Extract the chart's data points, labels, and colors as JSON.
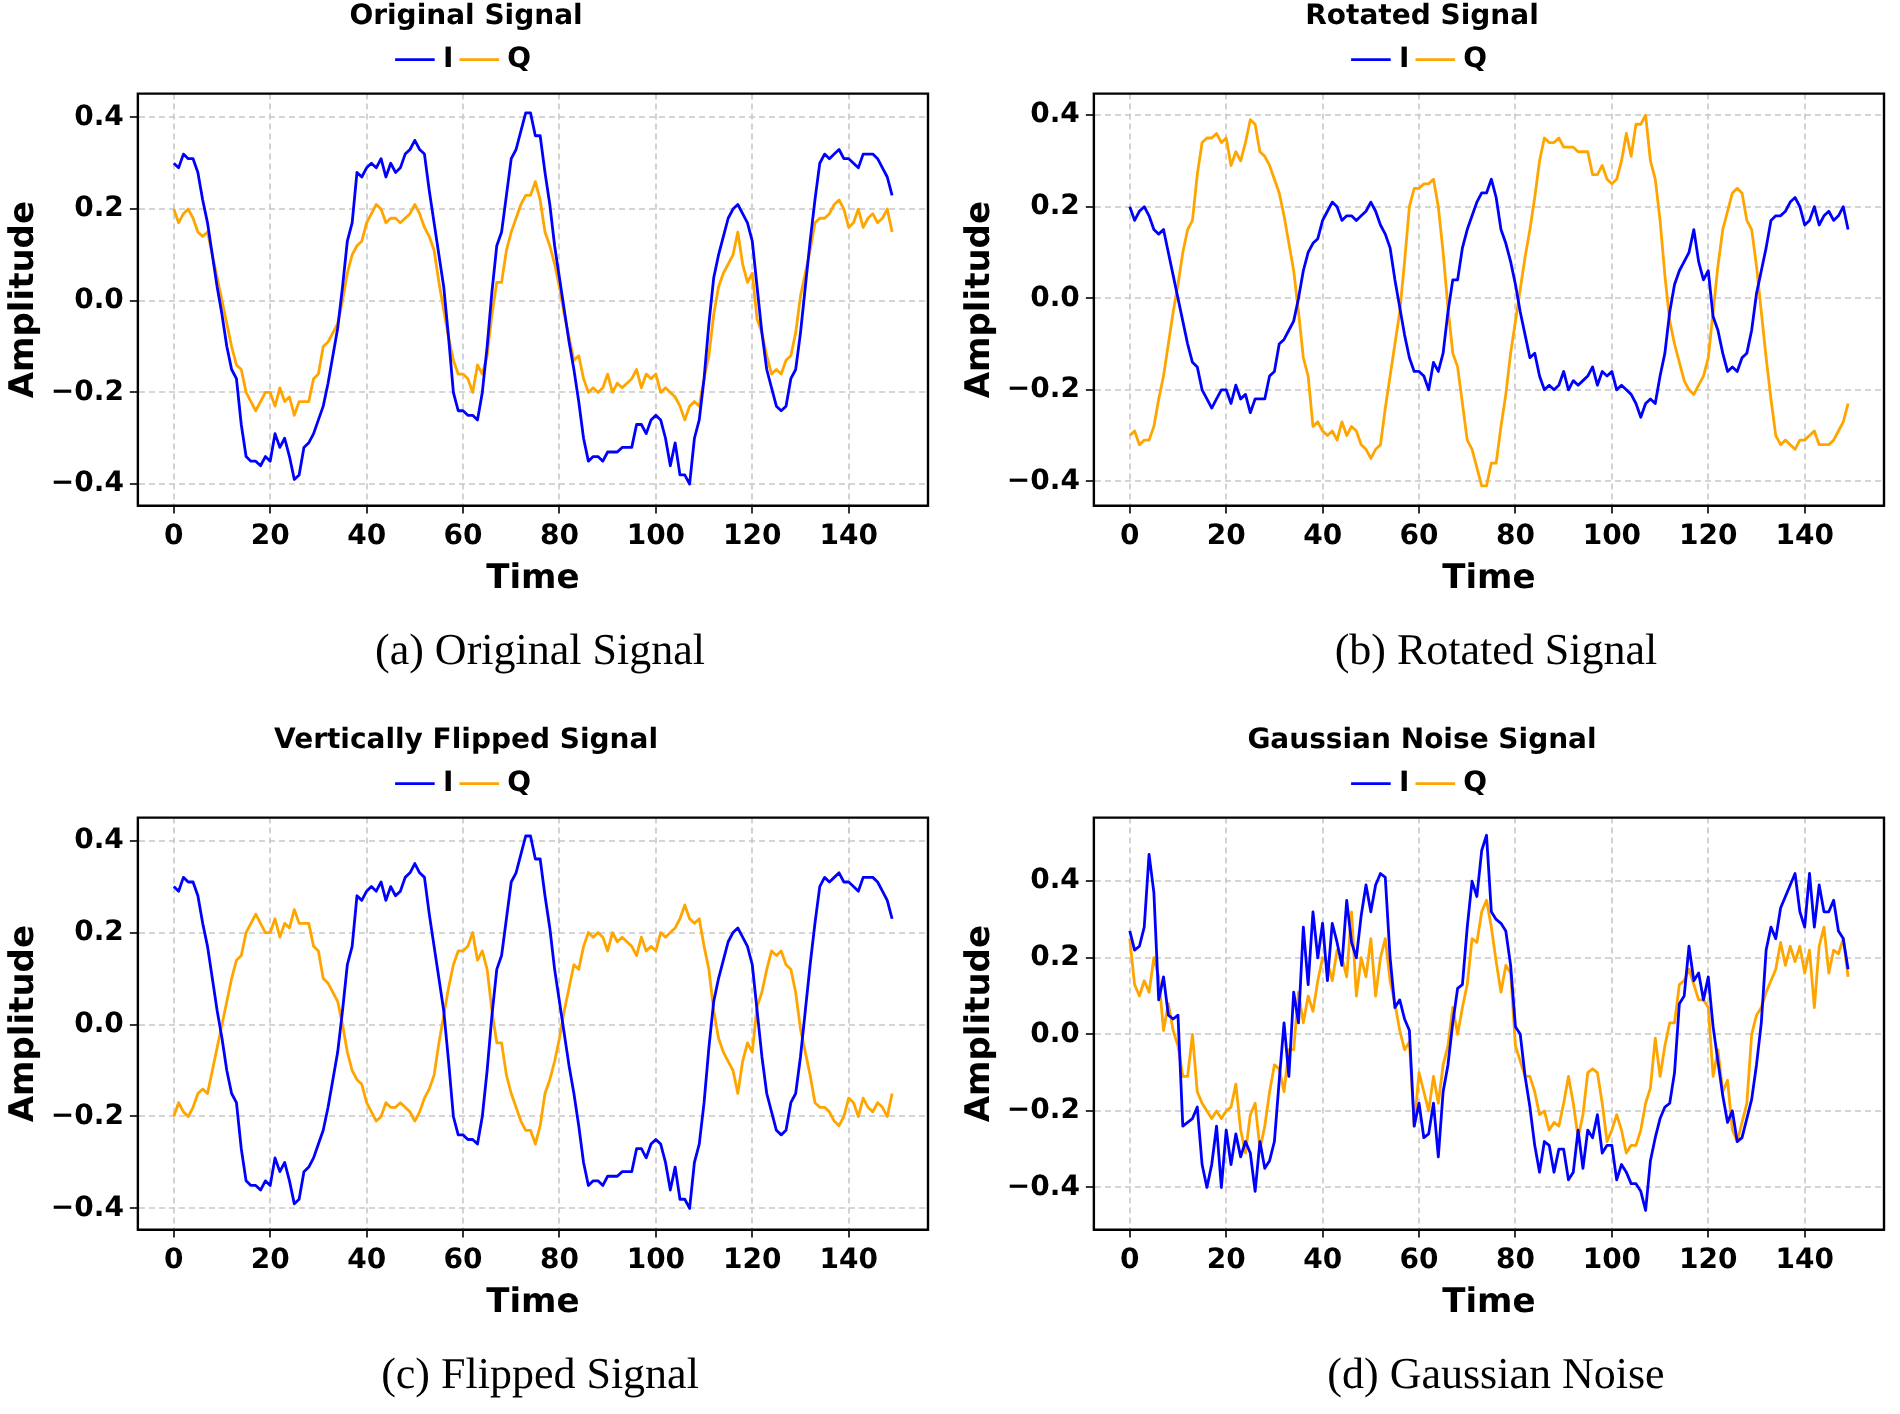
{
  "chart_data": [
    {
      "type": "line",
      "title": "Original Signal",
      "xlabel": "Time",
      "ylabel": "Amplitude",
      "legend": "top",
      "grid": true,
      "marker": "none",
      "line_style": "solid",
      "annotations": [
        "(a) Original Signal"
      ],
      "xlim": [
        -7.45,
        156.45
      ],
      "xticks": [
        0,
        20,
        40,
        60,
        80,
        100,
        120,
        140
      ],
      "ylim": [
        -0.447,
        0.452
      ],
      "yticks": [
        {
          "value": -0.4,
          "label": "−0.4"
        },
        {
          "value": -0.2,
          "label": "−0.2"
        },
        {
          "value": 0,
          "label": "0.0"
        },
        {
          "value": 0.2,
          "label": "0.2"
        },
        {
          "value": 0.4,
          "label": "0.4"
        }
      ],
      "x": [
        0,
        1,
        2,
        3,
        4,
        5,
        6,
        7,
        8,
        9,
        10,
        11,
        12,
        13,
        14,
        15,
        16,
        17,
        18,
        19,
        20,
        21,
        22,
        23,
        24,
        25,
        26,
        27,
        28,
        29,
        30,
        31,
        32,
        33,
        34,
        35,
        36,
        37,
        38,
        39,
        40,
        41,
        42,
        43,
        44,
        45,
        46,
        47,
        48,
        49,
        50,
        51,
        52,
        53,
        54,
        55,
        56,
        57,
        58,
        59,
        60,
        61,
        62,
        63,
        64,
        65,
        66,
        67,
        68,
        69,
        70,
        71,
        72,
        73,
        74,
        75,
        76,
        77,
        78,
        79,
        80,
        81,
        82,
        83,
        84,
        85,
        86,
        87,
        88,
        89,
        90,
        91,
        92,
        93,
        94,
        95,
        96,
        97,
        98,
        99,
        100,
        101,
        102,
        103,
        104,
        105,
        106,
        107,
        108,
        109,
        110,
        111,
        112,
        113,
        114,
        115,
        116,
        117,
        118,
        119,
        120,
        121,
        122,
        123,
        124,
        125,
        126,
        127,
        128,
        129,
        130,
        131,
        132,
        133,
        134,
        135,
        136,
        137,
        138,
        139,
        140,
        141,
        142,
        143,
        144,
        145,
        146,
        147,
        148,
        149
      ],
      "series": [
        {
          "name": "I",
          "color": "#0000ff",
          "values": [
            0.3,
            0.29,
            0.32,
            0.31,
            0.31,
            0.28,
            0.22,
            0.17,
            0.1,
            0.03,
            -0.03,
            -0.1,
            -0.15,
            -0.17,
            -0.27,
            -0.34,
            -0.35,
            -0.35,
            -0.36,
            -0.34,
            -0.35,
            -0.29,
            -0.32,
            -0.3,
            -0.34,
            -0.39,
            -0.38,
            -0.32,
            -0.31,
            -0.29,
            -0.26,
            -0.23,
            -0.18,
            -0.12,
            -0.06,
            0.03,
            0.13,
            0.17,
            0.28,
            0.27,
            0.29,
            0.3,
            0.29,
            0.31,
            0.27,
            0.3,
            0.28,
            0.29,
            0.32,
            0.33,
            0.35,
            0.33,
            0.32,
            0.24,
            0.17,
            0.1,
            0.03,
            -0.08,
            -0.2,
            -0.24,
            -0.24,
            -0.25,
            -0.25,
            -0.26,
            -0.2,
            -0.1,
            0.02,
            0.12,
            0.15,
            0.23,
            0.31,
            0.33,
            0.37,
            0.41,
            0.41,
            0.36,
            0.36,
            0.28,
            0.21,
            0.12,
            0.05,
            -0.02,
            -0.09,
            -0.15,
            -0.22,
            -0.3,
            -0.35,
            -0.34,
            -0.34,
            -0.35,
            -0.33,
            -0.33,
            -0.33,
            -0.32,
            -0.32,
            -0.32,
            -0.27,
            -0.27,
            -0.29,
            -0.26,
            -0.25,
            -0.26,
            -0.3,
            -0.36,
            -0.31,
            -0.38,
            -0.38,
            -0.4,
            -0.3,
            -0.26,
            -0.17,
            -0.05,
            0.05,
            0.1,
            0.14,
            0.18,
            0.2,
            0.21,
            0.19,
            0.17,
            0.13,
            0.03,
            -0.07,
            -0.15,
            -0.19,
            -0.23,
            -0.24,
            -0.23,
            -0.17,
            -0.15,
            -0.07,
            0.03,
            0.13,
            0.22,
            0.3,
            0.32,
            0.31,
            0.32,
            0.33,
            0.31,
            0.31,
            0.3,
            0.29,
            0.32,
            0.32,
            0.32,
            0.31,
            0.29,
            0.27,
            0.23
          ]
        },
        {
          "name": "Q",
          "color": "#ffa500",
          "values": [
            0.2,
            0.17,
            0.19,
            0.2,
            0.18,
            0.15,
            0.14,
            0.15,
            0.1,
            0.05,
            0.0,
            -0.05,
            -0.1,
            -0.14,
            -0.15,
            -0.2,
            -0.22,
            -0.24,
            -0.22,
            -0.2,
            -0.2,
            -0.23,
            -0.19,
            -0.22,
            -0.21,
            -0.25,
            -0.22,
            -0.22,
            -0.22,
            -0.17,
            -0.16,
            -0.1,
            -0.09,
            -0.07,
            -0.05,
            0.0,
            0.06,
            0.1,
            0.12,
            0.13,
            0.17,
            0.19,
            0.21,
            0.2,
            0.17,
            0.18,
            0.18,
            0.17,
            0.18,
            0.19,
            0.21,
            0.19,
            0.16,
            0.14,
            0.11,
            0.04,
            -0.02,
            -0.08,
            -0.13,
            -0.16,
            -0.16,
            -0.17,
            -0.2,
            -0.14,
            -0.16,
            -0.12,
            -0.03,
            0.04,
            0.04,
            0.11,
            0.15,
            0.18,
            0.21,
            0.23,
            0.23,
            0.26,
            0.22,
            0.15,
            0.12,
            0.08,
            0.03,
            -0.03,
            -0.08,
            -0.13,
            -0.12,
            -0.17,
            -0.2,
            -0.19,
            -0.2,
            -0.19,
            -0.16,
            -0.2,
            -0.18,
            -0.19,
            -0.18,
            -0.17,
            -0.15,
            -0.19,
            -0.16,
            -0.17,
            -0.16,
            -0.2,
            -0.19,
            -0.2,
            -0.21,
            -0.23,
            -0.26,
            -0.23,
            -0.22,
            -0.23,
            -0.17,
            -0.12,
            -0.03,
            0.03,
            0.06,
            0.08,
            0.1,
            0.15,
            0.08,
            0.04,
            0.06,
            -0.04,
            -0.07,
            -0.12,
            -0.16,
            -0.15,
            -0.16,
            -0.13,
            -0.12,
            -0.07,
            0.01,
            0.06,
            0.11,
            0.17,
            0.18,
            0.18,
            0.19,
            0.21,
            0.22,
            0.2,
            0.16,
            0.17,
            0.2,
            0.16,
            0.18,
            0.19,
            0.17,
            0.18,
            0.2,
            0.15
          ]
        }
      ]
    },
    {
      "type": "line",
      "title": "Rotated Signal",
      "xlabel": "Time",
      "ylabel": "Amplitude",
      "legend": "top",
      "grid": true,
      "marker": "none",
      "line_style": "solid",
      "annotations": [
        "(b) Rotated Signal"
      ],
      "xlim": [
        -7.45,
        156.45
      ],
      "xticks": [
        0,
        20,
        40,
        60,
        80,
        100,
        120,
        140
      ],
      "ylim": [
        -0.453,
        0.447
      ],
      "yticks": [
        {
          "value": -0.4,
          "label": "−0.4"
        },
        {
          "value": -0.2,
          "label": "−0.2"
        },
        {
          "value": 0,
          "label": "0.0"
        },
        {
          "value": 0.2,
          "label": "0.2"
        },
        {
          "value": 0.4,
          "label": "0.4"
        }
      ],
      "x": [
        0,
        1,
        2,
        3,
        4,
        5,
        6,
        7,
        8,
        9,
        10,
        11,
        12,
        13,
        14,
        15,
        16,
        17,
        18,
        19,
        20,
        21,
        22,
        23,
        24,
        25,
        26,
        27,
        28,
        29,
        30,
        31,
        32,
        33,
        34,
        35,
        36,
        37,
        38,
        39,
        40,
        41,
        42,
        43,
        44,
        45,
        46,
        47,
        48,
        49,
        50,
        51,
        52,
        53,
        54,
        55,
        56,
        57,
        58,
        59,
        60,
        61,
        62,
        63,
        64,
        65,
        66,
        67,
        68,
        69,
        70,
        71,
        72,
        73,
        74,
        75,
        76,
        77,
        78,
        79,
        80,
        81,
        82,
        83,
        84,
        85,
        86,
        87,
        88,
        89,
        90,
        91,
        92,
        93,
        94,
        95,
        96,
        97,
        98,
        99,
        100,
        101,
        102,
        103,
        104,
        105,
        106,
        107,
        108,
        109,
        110,
        111,
        112,
        113,
        114,
        115,
        116,
        117,
        118,
        119,
        120,
        121,
        122,
        123,
        124,
        125,
        126,
        127,
        128,
        129,
        130,
        131,
        132,
        133,
        134,
        135,
        136,
        137,
        138,
        139,
        140,
        141,
        142,
        143,
        144,
        145,
        146,
        147,
        148,
        149
      ],
      "series": [
        {
          "name": "I",
          "color": "#0000ff",
          "values": [
            0.2,
            0.17,
            0.19,
            0.2,
            0.18,
            0.15,
            0.14,
            0.15,
            0.1,
            0.05,
            0.0,
            -0.05,
            -0.1,
            -0.14,
            -0.15,
            -0.2,
            -0.22,
            -0.24,
            -0.22,
            -0.2,
            -0.2,
            -0.23,
            -0.19,
            -0.22,
            -0.21,
            -0.25,
            -0.22,
            -0.22,
            -0.22,
            -0.17,
            -0.16,
            -0.1,
            -0.09,
            -0.07,
            -0.05,
            0.0,
            0.06,
            0.1,
            0.12,
            0.13,
            0.17,
            0.19,
            0.21,
            0.2,
            0.17,
            0.18,
            0.18,
            0.17,
            0.18,
            0.19,
            0.21,
            0.19,
            0.16,
            0.14,
            0.11,
            0.04,
            -0.02,
            -0.08,
            -0.13,
            -0.16,
            -0.16,
            -0.17,
            -0.2,
            -0.14,
            -0.16,
            -0.12,
            -0.03,
            0.04,
            0.04,
            0.11,
            0.15,
            0.18,
            0.21,
            0.23,
            0.23,
            0.26,
            0.22,
            0.15,
            0.12,
            0.08,
            0.03,
            -0.03,
            -0.08,
            -0.13,
            -0.12,
            -0.17,
            -0.2,
            -0.19,
            -0.2,
            -0.19,
            -0.16,
            -0.2,
            -0.18,
            -0.19,
            -0.18,
            -0.17,
            -0.15,
            -0.19,
            -0.16,
            -0.17,
            -0.16,
            -0.2,
            -0.19,
            -0.2,
            -0.21,
            -0.23,
            -0.26,
            -0.23,
            -0.22,
            -0.23,
            -0.17,
            -0.12,
            -0.03,
            0.03,
            0.06,
            0.08,
            0.1,
            0.15,
            0.08,
            0.04,
            0.06,
            -0.04,
            -0.07,
            -0.12,
            -0.16,
            -0.15,
            -0.16,
            -0.13,
            -0.12,
            -0.07,
            0.01,
            0.06,
            0.11,
            0.17,
            0.18,
            0.18,
            0.19,
            0.21,
            0.22,
            0.2,
            0.16,
            0.17,
            0.2,
            0.16,
            0.18,
            0.19,
            0.17,
            0.18,
            0.2,
            0.15
          ]
        },
        {
          "name": "Q",
          "color": "#ffa500",
          "values": [
            -0.3,
            -0.29,
            -0.32,
            -0.31,
            -0.31,
            -0.28,
            -0.22,
            -0.17,
            -0.1,
            -0.03,
            0.03,
            0.1,
            0.15,
            0.17,
            0.27,
            0.34,
            0.35,
            0.35,
            0.36,
            0.34,
            0.35,
            0.29,
            0.32,
            0.3,
            0.34,
            0.39,
            0.38,
            0.32,
            0.31,
            0.29,
            0.26,
            0.23,
            0.18,
            0.12,
            0.06,
            -0.03,
            -0.13,
            -0.17,
            -0.28,
            -0.27,
            -0.29,
            -0.3,
            -0.29,
            -0.31,
            -0.27,
            -0.3,
            -0.28,
            -0.29,
            -0.32,
            -0.33,
            -0.35,
            -0.33,
            -0.32,
            -0.24,
            -0.17,
            -0.1,
            -0.03,
            0.08,
            0.2,
            0.24,
            0.24,
            0.25,
            0.25,
            0.26,
            0.2,
            0.1,
            -0.02,
            -0.12,
            -0.15,
            -0.23,
            -0.31,
            -0.33,
            -0.37,
            -0.41,
            -0.41,
            -0.36,
            -0.36,
            -0.28,
            -0.21,
            -0.12,
            -0.05,
            0.02,
            0.09,
            0.15,
            0.22,
            0.3,
            0.35,
            0.34,
            0.34,
            0.35,
            0.33,
            0.33,
            0.33,
            0.32,
            0.32,
            0.32,
            0.27,
            0.27,
            0.29,
            0.26,
            0.25,
            0.26,
            0.3,
            0.36,
            0.31,
            0.38,
            0.38,
            0.4,
            0.3,
            0.26,
            0.17,
            0.05,
            -0.05,
            -0.1,
            -0.14,
            -0.18,
            -0.2,
            -0.21,
            -0.19,
            -0.17,
            -0.13,
            -0.03,
            0.07,
            0.15,
            0.19,
            0.23,
            0.24,
            0.23,
            0.17,
            0.15,
            0.07,
            -0.03,
            -0.13,
            -0.22,
            -0.3,
            -0.32,
            -0.31,
            -0.32,
            -0.33,
            -0.31,
            -0.31,
            -0.3,
            -0.29,
            -0.32,
            -0.32,
            -0.32,
            -0.31,
            -0.29,
            -0.27,
            -0.23
          ]
        }
      ]
    },
    {
      "type": "line",
      "title": "Vertically Flipped Signal",
      "xlabel": "Time",
      "ylabel": "Amplitude",
      "legend": "top",
      "grid": true,
      "marker": "none",
      "line_style": "solid",
      "annotations": [
        "(c) Flipped Signal"
      ],
      "xlim": [
        -7.45,
        156.45
      ],
      "xticks": [
        0,
        20,
        40,
        60,
        80,
        100,
        120,
        140
      ],
      "ylim": [
        -0.446,
        0.45
      ],
      "yticks": [
        {
          "value": -0.4,
          "label": "−0.4"
        },
        {
          "value": -0.2,
          "label": "−0.2"
        },
        {
          "value": 0,
          "label": "0.0"
        },
        {
          "value": 0.2,
          "label": "0.2"
        },
        {
          "value": 0.4,
          "label": "0.4"
        }
      ],
      "x": [
        0,
        1,
        2,
        3,
        4,
        5,
        6,
        7,
        8,
        9,
        10,
        11,
        12,
        13,
        14,
        15,
        16,
        17,
        18,
        19,
        20,
        21,
        22,
        23,
        24,
        25,
        26,
        27,
        28,
        29,
        30,
        31,
        32,
        33,
        34,
        35,
        36,
        37,
        38,
        39,
        40,
        41,
        42,
        43,
        44,
        45,
        46,
        47,
        48,
        49,
        50,
        51,
        52,
        53,
        54,
        55,
        56,
        57,
        58,
        59,
        60,
        61,
        62,
        63,
        64,
        65,
        66,
        67,
        68,
        69,
        70,
        71,
        72,
        73,
        74,
        75,
        76,
        77,
        78,
        79,
        80,
        81,
        82,
        83,
        84,
        85,
        86,
        87,
        88,
        89,
        90,
        91,
        92,
        93,
        94,
        95,
        96,
        97,
        98,
        99,
        100,
        101,
        102,
        103,
        104,
        105,
        106,
        107,
        108,
        109,
        110,
        111,
        112,
        113,
        114,
        115,
        116,
        117,
        118,
        119,
        120,
        121,
        122,
        123,
        124,
        125,
        126,
        127,
        128,
        129,
        130,
        131,
        132,
        133,
        134,
        135,
        136,
        137,
        138,
        139,
        140,
        141,
        142,
        143,
        144,
        145,
        146,
        147,
        148,
        149
      ],
      "series": [
        {
          "name": "I",
          "color": "#0000ff",
          "values": [
            0.3,
            0.29,
            0.32,
            0.31,
            0.31,
            0.28,
            0.22,
            0.17,
            0.1,
            0.03,
            -0.03,
            -0.1,
            -0.15,
            -0.17,
            -0.27,
            -0.34,
            -0.35,
            -0.35,
            -0.36,
            -0.34,
            -0.35,
            -0.29,
            -0.32,
            -0.3,
            -0.34,
            -0.39,
            -0.38,
            -0.32,
            -0.31,
            -0.29,
            -0.26,
            -0.23,
            -0.18,
            -0.12,
            -0.06,
            0.03,
            0.13,
            0.17,
            0.28,
            0.27,
            0.29,
            0.3,
            0.29,
            0.31,
            0.27,
            0.3,
            0.28,
            0.29,
            0.32,
            0.33,
            0.35,
            0.33,
            0.32,
            0.24,
            0.17,
            0.1,
            0.03,
            -0.08,
            -0.2,
            -0.24,
            -0.24,
            -0.25,
            -0.25,
            -0.26,
            -0.2,
            -0.1,
            0.02,
            0.12,
            0.15,
            0.23,
            0.31,
            0.33,
            0.37,
            0.41,
            0.41,
            0.36,
            0.36,
            0.28,
            0.21,
            0.12,
            0.05,
            -0.02,
            -0.09,
            -0.15,
            -0.22,
            -0.3,
            -0.35,
            -0.34,
            -0.34,
            -0.35,
            -0.33,
            -0.33,
            -0.33,
            -0.32,
            -0.32,
            -0.32,
            -0.27,
            -0.27,
            -0.29,
            -0.26,
            -0.25,
            -0.26,
            -0.3,
            -0.36,
            -0.31,
            -0.38,
            -0.38,
            -0.4,
            -0.3,
            -0.26,
            -0.17,
            -0.05,
            0.05,
            0.1,
            0.14,
            0.18,
            0.2,
            0.21,
            0.19,
            0.17,
            0.13,
            0.03,
            -0.07,
            -0.15,
            -0.19,
            -0.23,
            -0.24,
            -0.23,
            -0.17,
            -0.15,
            -0.07,
            0.03,
            0.13,
            0.22,
            0.3,
            0.32,
            0.31,
            0.32,
            0.33,
            0.31,
            0.31,
            0.3,
            0.29,
            0.32,
            0.32,
            0.32,
            0.31,
            0.29,
            0.27,
            0.23
          ]
        },
        {
          "name": "Q",
          "color": "#ffa500",
          "values": [
            -0.2,
            -0.17,
            -0.19,
            -0.2,
            -0.18,
            -0.15,
            -0.14,
            -0.15,
            -0.1,
            -0.05,
            0.0,
            0.05,
            0.1,
            0.14,
            0.15,
            0.2,
            0.22,
            0.24,
            0.22,
            0.2,
            0.2,
            0.23,
            0.19,
            0.22,
            0.21,
            0.25,
            0.22,
            0.22,
            0.22,
            0.17,
            0.16,
            0.1,
            0.09,
            0.07,
            0.05,
            0.0,
            -0.06,
            -0.1,
            -0.12,
            -0.13,
            -0.17,
            -0.19,
            -0.21,
            -0.2,
            -0.17,
            -0.18,
            -0.18,
            -0.17,
            -0.18,
            -0.19,
            -0.21,
            -0.19,
            -0.16,
            -0.14,
            -0.11,
            -0.04,
            0.02,
            0.08,
            0.13,
            0.16,
            0.16,
            0.17,
            0.2,
            0.14,
            0.16,
            0.12,
            0.03,
            -0.04,
            -0.04,
            -0.11,
            -0.15,
            -0.18,
            -0.21,
            -0.23,
            -0.23,
            -0.26,
            -0.22,
            -0.15,
            -0.12,
            -0.08,
            -0.03,
            0.03,
            0.08,
            0.13,
            0.12,
            0.17,
            0.2,
            0.19,
            0.2,
            0.19,
            0.16,
            0.2,
            0.18,
            0.19,
            0.18,
            0.17,
            0.15,
            0.19,
            0.16,
            0.17,
            0.16,
            0.2,
            0.19,
            0.2,
            0.21,
            0.23,
            0.26,
            0.23,
            0.22,
            0.23,
            0.17,
            0.12,
            0.03,
            -0.03,
            -0.06,
            -0.08,
            -0.1,
            -0.15,
            -0.08,
            -0.04,
            -0.06,
            0.04,
            0.07,
            0.12,
            0.16,
            0.15,
            0.16,
            0.13,
            0.12,
            0.07,
            -0.01,
            -0.06,
            -0.11,
            -0.17,
            -0.18,
            -0.18,
            -0.19,
            -0.21,
            -0.22,
            -0.2,
            -0.16,
            -0.17,
            -0.2,
            -0.16,
            -0.18,
            -0.19,
            -0.17,
            -0.18,
            -0.2,
            -0.15
          ]
        }
      ]
    },
    {
      "type": "line",
      "title": "Gaussian Noise Signal",
      "xlabel": "Time",
      "ylabel": "Amplitude",
      "legend": "top",
      "grid": true,
      "marker": "none",
      "line_style": "solid",
      "annotations": [
        "(d) Gaussian Noise"
      ],
      "xlim": [
        -7.45,
        156.45
      ],
      "xticks": [
        0,
        20,
        40,
        60,
        80,
        100,
        120,
        140
      ],
      "ylim": [
        -0.51,
        0.566
      ],
      "yticks": [
        {
          "value": -0.4,
          "label": "−0.4"
        },
        {
          "value": -0.2,
          "label": "−0.2"
        },
        {
          "value": 0,
          "label": "0.0"
        },
        {
          "value": 0.2,
          "label": "0.2"
        },
        {
          "value": 0.4,
          "label": "0.4"
        }
      ],
      "x": [
        0,
        1,
        2,
        3,
        4,
        5,
        6,
        7,
        8,
        9,
        10,
        11,
        12,
        13,
        14,
        15,
        16,
        17,
        18,
        19,
        20,
        21,
        22,
        23,
        24,
        25,
        26,
        27,
        28,
        29,
        30,
        31,
        32,
        33,
        34,
        35,
        36,
        37,
        38,
        39,
        40,
        41,
        42,
        43,
        44,
        45,
        46,
        47,
        48,
        49,
        50,
        51,
        52,
        53,
        54,
        55,
        56,
        57,
        58,
        59,
        60,
        61,
        62,
        63,
        64,
        65,
        66,
        67,
        68,
        69,
        70,
        71,
        72,
        73,
        74,
        75,
        76,
        77,
        78,
        79,
        80,
        81,
        82,
        83,
        84,
        85,
        86,
        87,
        88,
        89,
        90,
        91,
        92,
        93,
        94,
        95,
        96,
        97,
        98,
        99,
        100,
        101,
        102,
        103,
        104,
        105,
        106,
        107,
        108,
        109,
        110,
        111,
        112,
        113,
        114,
        115,
        116,
        117,
        118,
        119,
        120,
        121,
        122,
        123,
        124,
        125,
        126,
        127,
        128,
        129,
        130,
        131,
        132,
        133,
        134,
        135,
        136,
        137,
        138,
        139,
        140,
        141,
        142,
        143,
        144,
        145,
        146,
        147,
        148,
        149
      ],
      "series": [
        {
          "name": "I",
          "color": "#0000ff",
          "values": [
            0.27,
            0.22,
            0.23,
            0.28,
            0.47,
            0.37,
            0.09,
            0.15,
            0.05,
            0.04,
            0.05,
            -0.24,
            -0.23,
            -0.22,
            -0.19,
            -0.34,
            -0.4,
            -0.34,
            -0.24,
            -0.4,
            -0.25,
            -0.34,
            -0.26,
            -0.32,
            -0.28,
            -0.31,
            -0.41,
            -0.28,
            -0.35,
            -0.33,
            -0.28,
            -0.12,
            0.03,
            -0.11,
            0.11,
            0.03,
            0.28,
            0.13,
            0.32,
            0.2,
            0.29,
            0.14,
            0.29,
            0.24,
            0.18,
            0.35,
            0.24,
            0.2,
            0.31,
            0.39,
            0.32,
            0.39,
            0.42,
            0.41,
            0.2,
            0.07,
            0.09,
            0.04,
            0.01,
            -0.24,
            -0.18,
            -0.27,
            -0.26,
            -0.18,
            -0.32,
            -0.15,
            -0.08,
            0.03,
            0.12,
            0.13,
            0.28,
            0.4,
            0.36,
            0.48,
            0.52,
            0.32,
            0.3,
            0.29,
            0.27,
            0.18,
            0.02,
            0.0,
            -0.11,
            -0.19,
            -0.29,
            -0.36,
            -0.28,
            -0.29,
            -0.36,
            -0.3,
            -0.3,
            -0.38,
            -0.36,
            -0.25,
            -0.35,
            -0.25,
            -0.27,
            -0.21,
            -0.31,
            -0.29,
            -0.29,
            -0.38,
            -0.34,
            -0.36,
            -0.39,
            -0.39,
            -0.41,
            -0.46,
            -0.33,
            -0.27,
            -0.22,
            -0.19,
            -0.18,
            -0.1,
            0.08,
            0.1,
            0.23,
            0.14,
            0.16,
            0.09,
            0.15,
            0.02,
            -0.07,
            -0.16,
            -0.23,
            -0.2,
            -0.28,
            -0.27,
            -0.22,
            -0.17,
            -0.08,
            0.03,
            0.22,
            0.28,
            0.25,
            0.33,
            0.36,
            0.39,
            0.42,
            0.32,
            0.28,
            0.42,
            0.28,
            0.39,
            0.32,
            0.32,
            0.35,
            0.27,
            0.25,
            0.17
          ]
        },
        {
          "name": "Q",
          "color": "#ffa500",
          "values": [
            0.25,
            0.13,
            0.1,
            0.14,
            0.11,
            0.2,
            0.15,
            0.01,
            0.08,
            0.01,
            -0.03,
            -0.11,
            -0.11,
            0.0,
            -0.15,
            -0.18,
            -0.2,
            -0.22,
            -0.2,
            -0.22,
            -0.2,
            -0.19,
            -0.13,
            -0.25,
            -0.31,
            -0.21,
            -0.18,
            -0.3,
            -0.24,
            -0.15,
            -0.08,
            -0.09,
            -0.15,
            -0.04,
            -0.04,
            0.11,
            0.03,
            0.1,
            0.06,
            0.14,
            0.2,
            0.19,
            0.14,
            0.22,
            0.2,
            0.15,
            0.32,
            0.1,
            0.2,
            0.15,
            0.25,
            0.1,
            0.2,
            0.25,
            0.14,
            0.08,
            0.01,
            -0.04,
            -0.02,
            -0.24,
            -0.1,
            -0.15,
            -0.2,
            -0.11,
            -0.18,
            -0.08,
            -0.03,
            0.07,
            0.0,
            0.07,
            0.13,
            0.25,
            0.24,
            0.32,
            0.35,
            0.28,
            0.19,
            0.11,
            0.18,
            0.16,
            -0.03,
            -0.07,
            -0.11,
            -0.11,
            -0.15,
            -0.21,
            -0.2,
            -0.25,
            -0.23,
            -0.24,
            -0.18,
            -0.11,
            -0.18,
            -0.27,
            -0.21,
            -0.1,
            -0.09,
            -0.1,
            -0.18,
            -0.28,
            -0.25,
            -0.21,
            -0.25,
            -0.31,
            -0.29,
            -0.29,
            -0.25,
            -0.18,
            -0.14,
            -0.01,
            -0.11,
            -0.03,
            0.03,
            0.03,
            0.13,
            0.14,
            0.17,
            0.13,
            0.09,
            0.09,
            0.07,
            -0.11,
            -0.04,
            -0.15,
            -0.12,
            -0.25,
            -0.28,
            -0.23,
            -0.18,
            0.0,
            0.05,
            0.07,
            0.11,
            0.14,
            0.17,
            0.24,
            0.18,
            0.23,
            0.19,
            0.23,
            0.16,
            0.22,
            0.07,
            0.23,
            0.28,
            0.16,
            0.22,
            0.21,
            0.25,
            0.15
          ]
        }
      ]
    }
  ]
}
